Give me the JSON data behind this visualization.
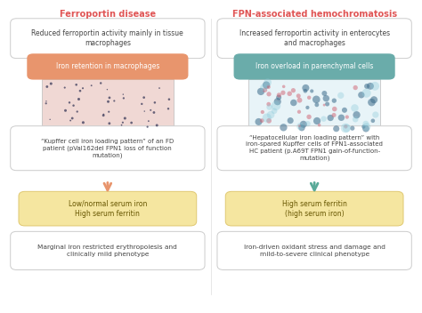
{
  "title_left": "Ferroportin disease",
  "title_right": "FPN-associated hemochromatosis",
  "title_left_color": "#e05555",
  "title_right_color": "#e05555",
  "box1_left": "Reduced ferroportin activity mainly in tissue\nmacrophages",
  "box1_right": "Increased ferroportin activity in enterocytes\nand macrophages",
  "box2_left": "Iron retention in macrophages",
  "box2_right": "Iron overload in parenchymal cells",
  "box2_left_color": "#e8956d",
  "box2_right_color": "#6aacaa",
  "caption_left": "“Kupffer cell iron loading pattern” of an FD\npatient (pVal162del FPN1 loss of function\nmutation)",
  "caption_right": "“Hepatocellular iron loading pattern” with\niron-spared Kupffer cells of FPN1-associated\nHC patient (p.A69T FPN1 gain-of-function-\nmutation)",
  "arrow_left_color": "#e8956d",
  "arrow_right_color": "#5aaa99",
  "box3_left": "Low/normal serum iron\nHigh serum ferritin",
  "box3_right": "High serum ferritin\n(high serum iron)",
  "box3_color": "#f5e6a0",
  "box3_border": "#e0c870",
  "box4_left": "Marginal iron restricted erythropoiesis and\nclinically mild phenotype",
  "box4_right": "Iron-driven oxidant stress and damage and\nmild-to-severe clinical phenotype",
  "bg_color": "#ffffff",
  "box_border_color": "#cccccc",
  "box_text_color": "#444444",
  "left_img_color": "#f0d8d4",
  "right_img_color": "#d0e8f0"
}
